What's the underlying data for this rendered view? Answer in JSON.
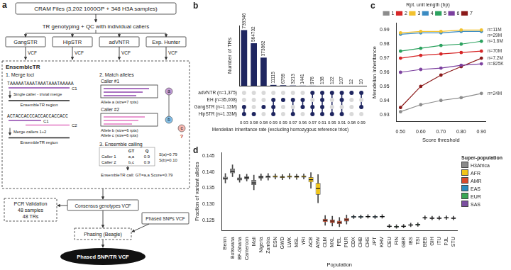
{
  "diagram": {
    "panel_label": "a",
    "input": "CRAM Files (3,202 1000GP + 348 H3A samples)",
    "step": "TR genotyping + QC with individual callers",
    "callers": [
      "GangSTR",
      "HipSTR",
      "adVNTR",
      "Exp. Hunter"
    ],
    "caller_output": "VCF",
    "ensemble": {
      "title": "EnsembleTR",
      "merge": {
        "title": "1. Merge loci",
        "examples": [
          {
            "sequence": "TAAAAATAAATAAATAAATAAAAA",
            "callers": [
              "C1"
            ],
            "action": "Single caller - trivial merge",
            "result": "EnsembleTR region"
          },
          {
            "sequence": "ACTACCACCCACCACCACCACC",
            "callers": [
              "C1",
              "C2"
            ],
            "action": "Merge callers 1+2",
            "result": "EnsembleTR region"
          }
        ]
      },
      "match": {
        "title": "2. Match alleles",
        "callers": [
          {
            "name": "Caller #1",
            "alleles": [
              "Allele a (size=7 rpts)"
            ]
          },
          {
            "name": "Caller #2",
            "alleles": [
              "Allele b (size=6 rpts)",
              "Allele c (size=6 rpts)"
            ]
          }
        ],
        "nodes": [
          "a",
          "b",
          "c"
        ],
        "unmatched": "?"
      },
      "calling": {
        "title": "3. Ensemble calling",
        "header": [
          "GT",
          "Q"
        ],
        "rows": [
          {
            "caller": "Caller 1",
            "gt": "a,a",
            "q": 0.9
          },
          {
            "caller": "Caller 2",
            "gt": "b,c",
            "q": 0.9
          }
        ],
        "scores": [
          "S(a)=0.79",
          "S(b)=0.10"
        ],
        "result": "EnsembleTR call: GT=a,a Score=0.79"
      }
    },
    "validation": [
      "PCR Validation",
      "48 samples",
      "48 TRs"
    ],
    "consensus": "Consensus genotypes VCF",
    "snps": "Phased SNPs VCF",
    "phasing": "Phasing (Beagle)",
    "output": "Phased SNP/TR VCF"
  },
  "chart_data": [
    {
      "panel_label": "b",
      "type": "bar",
      "ylabel": "Number of TRs",
      "values": [
        739346,
        564732,
        373862,
        11115,
        6799,
        3213,
        1441,
        976,
        138,
        122,
        107,
        12,
        10
      ],
      "color": "#1f2660",
      "ylim": [
        0,
        800000
      ],
      "tick_labels": false,
      "data_labels": true,
      "grid": false,
      "sets": [
        "adVNTR (n=1,375)",
        "EH (n=35,008)",
        "GangSTR (n=1.13M)",
        "HipSTR (n=1.33M)"
      ],
      "membership": [
        [
          false,
          false,
          true,
          true
        ],
        [
          false,
          false,
          false,
          true
        ],
        [
          false,
          false,
          true,
          false
        ],
        [
          false,
          true,
          true,
          true
        ],
        [
          false,
          true,
          false,
          false
        ],
        [
          false,
          true,
          false,
          true
        ],
        [
          false,
          true,
          true,
          false
        ],
        [
          true,
          false,
          true,
          true
        ],
        [
          true,
          true,
          true,
          true
        ],
        [
          true,
          false,
          false,
          true
        ],
        [
          true,
          true,
          false,
          true
        ],
        [
          true,
          false,
          false,
          false
        ],
        [
          true,
          false,
          true,
          false
        ]
      ],
      "mendelian_rates": [
        0.93,
        0.98,
        0.98,
        0.99,
        0.99,
        0.97,
        0.96,
        0.97,
        0.91,
        0.95,
        0.91,
        0.98,
        0.99
      ],
      "mendelian_label": "Mendelian Inheritance rate (excluding homozygous reference trios)"
    },
    {
      "panel_label": "c",
      "type": "line",
      "xlabel": "Score threshold",
      "ylabel": "Mendelian Inheritance",
      "legend": "top",
      "legend_title": "Rpt. unit length (bp)",
      "grid": false,
      "marker": "circle",
      "x": [
        0.5,
        0.6,
        0.7,
        0.8,
        0.9
      ],
      "xlim": [
        0.48,
        0.92
      ],
      "xticks": [
        {
          "value": 0.5,
          "label": "0.50"
        },
        {
          "value": 0.6,
          "label": "0.60"
        },
        {
          "value": 0.7,
          "label": "0.70"
        },
        {
          "value": 0.8,
          "label": "0.80"
        },
        {
          "value": 0.9,
          "label": "0.90"
        }
      ],
      "ylim": [
        0.925,
        0.995
      ],
      "yticks": [
        0.93,
        0.94,
        0.95,
        0.96,
        0.97,
        0.98,
        0.99
      ],
      "series": [
        {
          "name": "1",
          "color": "#8c8c8c",
          "values": [
            0.932,
            0.937,
            0.94,
            0.942,
            0.945
          ],
          "annotation": "n=24M"
        },
        {
          "name": "2",
          "color": "#d62728",
          "values": [
            0.97,
            0.972,
            0.973,
            0.974,
            0.975
          ],
          "annotation": "n=70M"
        },
        {
          "name": "3",
          "color": "#f2c12e",
          "values": [
            0.988,
            0.989,
            0.989,
            0.99,
            0.99
          ],
          "annotation": "n=11M"
        },
        {
          "name": "4",
          "color": "#3b8bc2",
          "values": [
            0.987,
            0.988,
            0.988,
            0.989,
            0.989
          ],
          "annotation": "n=29M"
        },
        {
          "name": "5",
          "color": "#2ca25f",
          "values": [
            0.975,
            0.977,
            0.979,
            0.98,
            0.982
          ],
          "annotation": "n=1.6M"
        },
        {
          "name": "6",
          "color": "#7b3f9e",
          "values": [
            0.96,
            0.962,
            0.963,
            0.965,
            0.966
          ],
          "annotation": "n=825K"
        },
        {
          "name": "7",
          "color": "#8b1a1a",
          "values": [
            0.935,
            0.95,
            0.958,
            0.964,
            0.97
          ],
          "annotation": "n=7.2M"
        }
      ]
    },
    {
      "panel_label": "d",
      "type": "box",
      "xlabel": "Population",
      "ylabel": "Fraction of variant alleles",
      "ylim": [
        0.122,
        0.146
      ],
      "yticks": [
        0.125,
        {
          "value": 0.13,
          "label": "0.130"
        },
        0.135,
        {
          "value": 0.14,
          "label": "0.140"
        },
        0.145
      ],
      "grid": false,
      "legend": "right",
      "legend_title": "Super-population",
      "groups": [
        {
          "name": "H3Africa",
          "color": "#8a8a8a"
        },
        {
          "name": "AFR",
          "color": "#f0c419"
        },
        {
          "name": "AMR",
          "color": "#d94a2b"
        },
        {
          "name": "EAS",
          "color": "#2b8cbe"
        },
        {
          "name": "EUR",
          "color": "#3aa655"
        },
        {
          "name": "SAS",
          "color": "#7b4fa0"
        }
      ],
      "categories": [
        "Benin",
        "Botswana",
        "BF-Ghana",
        "Cameroon",
        "Mali",
        "Nigeria",
        "Zambia",
        "ESN",
        "GWD",
        "LWK",
        "MSL",
        "YRI",
        "ACB",
        "ASW",
        "CLM",
        "MXL",
        "PEL",
        "PUR",
        "CDX",
        "CHB",
        "CHS",
        "JPT",
        "KHV",
        "CEU",
        "FIN",
        "GBR",
        "IBS",
        "TSI",
        "BEB",
        "GIH",
        "ITU",
        "PJL",
        "STU"
      ],
      "super_population": [
        "H3Africa",
        "H3Africa",
        "H3Africa",
        "H3Africa",
        "H3Africa",
        "H3Africa",
        "H3Africa",
        "AFR",
        "AFR",
        "AFR",
        "AFR",
        "AFR",
        "AFR",
        "AFR",
        "AMR",
        "AMR",
        "AMR",
        "AMR",
        "EAS",
        "EAS",
        "EAS",
        "EAS",
        "EAS",
        "EUR",
        "EUR",
        "EUR",
        "EUR",
        "EUR",
        "SAS",
        "SAS",
        "SAS",
        "SAS",
        "SAS"
      ],
      "boxes": [
        {
          "min": 0.1366,
          "q1": 0.1376,
          "median": 0.138,
          "q3": 0.1385,
          "max": 0.1395
        },
        {
          "min": 0.1385,
          "q1": 0.1396,
          "median": 0.1402,
          "q3": 0.141,
          "max": 0.1422
        },
        {
          "min": 0.1368,
          "q1": 0.1374,
          "median": 0.1378,
          "q3": 0.1383,
          "max": 0.1392
        },
        {
          "min": 0.1372,
          "q1": 0.1378,
          "median": 0.1382,
          "q3": 0.1386,
          "max": 0.1393
        },
        {
          "min": 0.1345,
          "q1": 0.136,
          "median": 0.1366,
          "q3": 0.1375,
          "max": 0.139
        },
        {
          "min": 0.1374,
          "q1": 0.138,
          "median": 0.1384,
          "q3": 0.1388,
          "max": 0.1394
        },
        {
          "min": 0.1375,
          "q1": 0.1381,
          "median": 0.1385,
          "q3": 0.1389,
          "max": 0.1395
        },
        {
          "min": 0.1378,
          "q1": 0.1383,
          "median": 0.1386,
          "q3": 0.1389,
          "max": 0.1394
        },
        {
          "min": 0.1376,
          "q1": 0.1381,
          "median": 0.1384,
          "q3": 0.1387,
          "max": 0.1392
        },
        {
          "min": 0.1378,
          "q1": 0.1383,
          "median": 0.1386,
          "q3": 0.1389,
          "max": 0.1395
        },
        {
          "min": 0.1377,
          "q1": 0.1382,
          "median": 0.1385,
          "q3": 0.1388,
          "max": 0.1393
        },
        {
          "min": 0.1378,
          "q1": 0.1383,
          "median": 0.1386,
          "q3": 0.1389,
          "max": 0.1394
        },
        {
          "min": 0.135,
          "q1": 0.1368,
          "median": 0.1376,
          "q3": 0.1384,
          "max": 0.1398
        },
        {
          "min": 0.1305,
          "q1": 0.133,
          "median": 0.135,
          "q3": 0.1366,
          "max": 0.1392
        },
        {
          "min": 0.1236,
          "q1": 0.1246,
          "median": 0.1251,
          "q3": 0.1256,
          "max": 0.1266
        },
        {
          "min": 0.1234,
          "q1": 0.1243,
          "median": 0.1249,
          "q3": 0.1254,
          "max": 0.1264
        },
        {
          "min": 0.1232,
          "q1": 0.124,
          "median": 0.1245,
          "q3": 0.125,
          "max": 0.126
        },
        {
          "min": 0.124,
          "q1": 0.1248,
          "median": 0.1253,
          "q3": 0.1258,
          "max": 0.1268
        },
        {
          "min": 0.1257,
          "q1": 0.126,
          "median": 0.1262,
          "q3": 0.1264,
          "max": 0.1268
        },
        {
          "min": 0.1257,
          "q1": 0.126,
          "median": 0.1262,
          "q3": 0.1264,
          "max": 0.1268
        },
        {
          "min": 0.1258,
          "q1": 0.1261,
          "median": 0.1263,
          "q3": 0.1265,
          "max": 0.1269
        },
        {
          "min": 0.1257,
          "q1": 0.126,
          "median": 0.1262,
          "q3": 0.1264,
          "max": 0.1268
        },
        {
          "min": 0.1258,
          "q1": 0.1261,
          "median": 0.1263,
          "q3": 0.1265,
          "max": 0.1269
        },
        {
          "min": 0.1228,
          "q1": 0.1231,
          "median": 0.1233,
          "q3": 0.1235,
          "max": 0.1239
        },
        {
          "min": 0.1227,
          "q1": 0.123,
          "median": 0.1232,
          "q3": 0.1234,
          "max": 0.1238
        },
        {
          "min": 0.1228,
          "q1": 0.1231,
          "median": 0.1233,
          "q3": 0.1235,
          "max": 0.1239
        },
        {
          "min": 0.1232,
          "q1": 0.1235,
          "median": 0.1237,
          "q3": 0.1239,
          "max": 0.1243
        },
        {
          "min": 0.1233,
          "q1": 0.1236,
          "median": 0.1238,
          "q3": 0.124,
          "max": 0.1244
        },
        {
          "min": 0.1254,
          "q1": 0.1257,
          "median": 0.1259,
          "q3": 0.1261,
          "max": 0.1265
        },
        {
          "min": 0.1253,
          "q1": 0.1256,
          "median": 0.1258,
          "q3": 0.126,
          "max": 0.1264
        },
        {
          "min": 0.1253,
          "q1": 0.1256,
          "median": 0.1258,
          "q3": 0.126,
          "max": 0.1264
        },
        {
          "min": 0.1254,
          "q1": 0.1257,
          "median": 0.1259,
          "q3": 0.1261,
          "max": 0.1265
        },
        {
          "min": 0.1253,
          "q1": 0.1256,
          "median": 0.1258,
          "q3": 0.126,
          "max": 0.1264
        }
      ]
    }
  ]
}
